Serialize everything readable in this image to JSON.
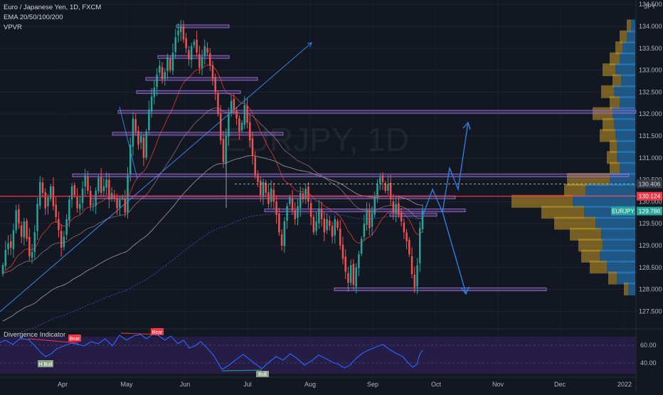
{
  "header": {
    "symbol_line": "Euro / Japanese Yen, 1D, FXCM",
    "indicator_1": "EMA 20/50/100/200",
    "indicator_2": "VPVR",
    "currency": "JPY",
    "watermark": "EURJPY, 1D"
  },
  "price_badges": {
    "red_line": "130.124",
    "dashed_line": "130.406",
    "current": "129.786",
    "current_label": "EURJPY"
  },
  "oscillator": {
    "title": "Divergence Indicator",
    "labels": [
      "Bear",
      "Bear",
      "H Bull",
      "Bull"
    ],
    "ticks": [
      "60.00",
      "40.00"
    ]
  },
  "colors": {
    "background": "#131722",
    "up_candle": "#26a69a",
    "down_candle": "#ef5350",
    "zone_purple": "#9c6fd6",
    "arrow_blue": "#2f7fe0",
    "resistance_red": "#f23645",
    "vp_blue": "#2a8bd6",
    "vp_gold": "#c99a27",
    "osc_line": "#2962ff",
    "osc_band": "#2a1f4a"
  },
  "chart_data": {
    "type": "candlestick",
    "title": "Euro / Japanese Yen, 1D, FXCM",
    "xlabel": "",
    "ylabel": "",
    "ylim": [
      127.1,
      134.6
    ],
    "y_ticks": [
      127.5,
      128.0,
      128.5,
      129.0,
      129.5,
      130.0,
      130.5,
      131.0,
      131.5,
      132.0,
      132.5,
      133.0,
      133.5,
      134.0,
      134.5
    ],
    "x_ticks": [
      "Apr",
      "May",
      "Jun",
      "Jul",
      "Aug",
      "Sep",
      "Oct",
      "Nov",
      "Dec",
      "2022"
    ],
    "closes": [
      128.55,
      128.9,
      129.05,
      128.95,
      129.35,
      129.8,
      129.5,
      129.2,
      129.55,
      129.15,
      128.75,
      128.85,
      129.3,
      129.95,
      130.45,
      130.2,
      129.85,
      130.1,
      130.35,
      129.9,
      129.65,
      129.35,
      128.95,
      129.2,
      129.6,
      130.05,
      130.35,
      130.15,
      129.85,
      129.95,
      130.3,
      130.6,
      130.25,
      129.9,
      129.95,
      130.25,
      130.55,
      130.2,
      130.35,
      130.5,
      130.05,
      130.2,
      130.1,
      129.85,
      130.05,
      130.1,
      129.75,
      130.6,
      131.3,
      131.9,
      131.6,
      131.3,
      131.5,
      131.0,
      131.6,
      132.1,
      132.4,
      132.6,
      132.9,
      133.1,
      132.8,
      132.95,
      133.3,
      133.0,
      133.4,
      133.75,
      133.9,
      134.0,
      133.7,
      133.5,
      133.25,
      133.55,
      133.65,
      133.4,
      133.05,
      133.3,
      133.55,
      133.4,
      133.1,
      132.8,
      132.5,
      132.0,
      131.4,
      130.9,
      131.5,
      132.0,
      132.3,
      132.1,
      131.9,
      131.6,
      131.8,
      132.2,
      131.8,
      131.4,
      131.05,
      130.6,
      130.45,
      130.15,
      130.45,
      130.2,
      129.95,
      130.3,
      130.0,
      129.7,
      129.3,
      129.0,
      129.55,
      129.9,
      130.1,
      129.8,
      129.6,
      129.9,
      130.2,
      130.05,
      130.3,
      130.0,
      129.65,
      129.3,
      129.55,
      129.85,
      129.6,
      129.3,
      129.6,
      129.45,
      129.2,
      129.6,
      129.4,
      129.0,
      128.7,
      128.4,
      128.15,
      128.55,
      128.1,
      128.5,
      128.8,
      129.15,
      129.5,
      129.8,
      129.4,
      129.75,
      130.1,
      130.4,
      130.55,
      130.45,
      130.25,
      130.4,
      130.05,
      129.75,
      129.95,
      129.7,
      129.55,
      129.3,
      129.1,
      128.8,
      128.35,
      128.05,
      128.55,
      129.4,
      129.8
    ],
    "series": [],
    "horizontal_zones": [
      134.0,
      133.3,
      132.8,
      132.5,
      132.05,
      131.55,
      130.6,
      130.1,
      129.8,
      129.7,
      128.0
    ],
    "resistance_level": 130.124,
    "volume_profile_levels": [
      134.0,
      133.75,
      133.5,
      133.25,
      133.0,
      132.75,
      132.5,
      132.25,
      132.0,
      131.75,
      131.5,
      131.25,
      131.0,
      130.75,
      130.5,
      130.25,
      130.0,
      129.75,
      129.5,
      129.25,
      129.0,
      128.75,
      128.5,
      128.25,
      128.0
    ]
  }
}
